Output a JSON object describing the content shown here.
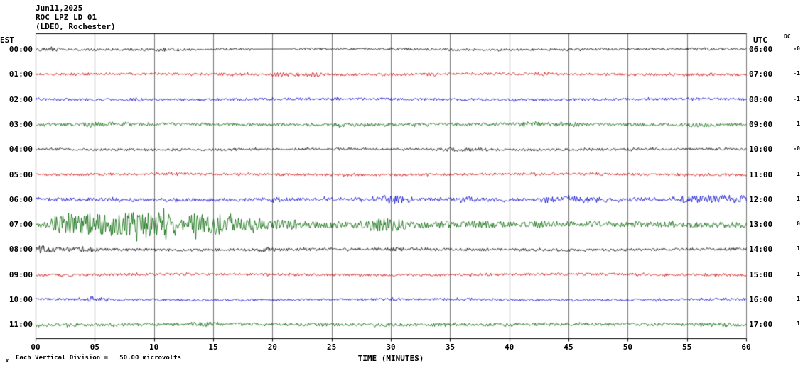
{
  "header": {
    "date": "Jun11,2025",
    "station": "ROC LPZ LD 01",
    "location": "(LDEO, Rochester)"
  },
  "axis": {
    "left_label": "EST",
    "right_label": "UTC",
    "dc_label": "DC",
    "x_title": "TIME (MINUTES)",
    "x_tick_labels": [
      "00",
      "05",
      "10",
      "15",
      "20",
      "25",
      "30",
      "35",
      "40",
      "45",
      "50",
      "55",
      "60"
    ],
    "footnote_marker": "x",
    "footnote": "Each Vertical Division =   50.00 microvolts"
  },
  "chart_data": {
    "type": "line",
    "title": "ROC LPZ LD 01 helicorder record, Jun11,2025 (LDEO, Rochester)",
    "xlabel": "TIME (MINUTES)",
    "x_range_minutes": [
      0,
      60
    ],
    "x_tick_interval": 5,
    "vertical_division_units": "50.00 microvolts",
    "grid": true,
    "colors": {
      "black": "#000000",
      "red": "#cc0000",
      "blue": "#0000cc",
      "green": "#006600"
    },
    "rows": [
      {
        "est": "00:00",
        "utc": "06:00",
        "dc": "-0",
        "color": "black",
        "base_amp": 1.6,
        "bursts": [
          {
            "t0": 0,
            "t1": 2,
            "amp": 2.6
          },
          {
            "t0": 9,
            "t1": 12,
            "amp": 2.2
          }
        ],
        "gaps": [
          [
            18.4,
            21.6
          ]
        ]
      },
      {
        "est": "01:00",
        "utc": "07:00",
        "dc": "-1",
        "color": "red",
        "base_amp": 1.8,
        "bursts": [
          {
            "t0": 20,
            "t1": 24,
            "amp": 3
          },
          {
            "t0": 33,
            "t1": 34,
            "amp": 2.6
          },
          {
            "t0": 42,
            "t1": 43,
            "amp": 2.6
          }
        ]
      },
      {
        "est": "02:00",
        "utc": "08:00",
        "dc": "-1",
        "color": "blue",
        "base_amp": 1.8,
        "bursts": [
          {
            "t0": 8,
            "t1": 9,
            "amp": 2.6
          },
          {
            "t0": 25,
            "t1": 26,
            "amp": 2.4
          },
          {
            "t0": 40,
            "t1": 41,
            "amp": 2.4
          }
        ]
      },
      {
        "est": "03:00",
        "utc": "09:00",
        "dc": "1",
        "color": "green",
        "base_amp": 2.2,
        "bursts": [
          {
            "t0": 4,
            "t1": 8,
            "amp": 3.2
          },
          {
            "t0": 25,
            "t1": 27,
            "amp": 2.8
          },
          {
            "t0": 41,
            "t1": 46,
            "amp": 3.2
          },
          {
            "t0": 55,
            "t1": 57,
            "amp": 2.8
          }
        ]
      },
      {
        "est": "04:00",
        "utc": "10:00",
        "dc": "-0",
        "color": "black",
        "base_amp": 1.7,
        "bursts": [
          {
            "t0": 34,
            "t1": 38,
            "amp": 2.8
          },
          {
            "t0": 50,
            "t1": 51,
            "amp": 2.4
          }
        ]
      },
      {
        "est": "05:00",
        "utc": "11:00",
        "dc": "1",
        "color": "red",
        "base_amp": 1.8,
        "bursts": [
          {
            "t0": 11,
            "t1": 12,
            "amp": 2.4
          },
          {
            "t0": 47,
            "t1": 48,
            "amp": 2.4
          }
        ]
      },
      {
        "est": "06:00",
        "utc": "12:00",
        "dc": "1",
        "color": "blue",
        "base_amp": 2.6,
        "bursts": [
          {
            "t0": 19.5,
            "t1": 20.5,
            "amp": 4.5
          },
          {
            "t0": 29.5,
            "t1": 31.5,
            "amp": 5.5
          },
          {
            "t0": 36,
            "t1": 37,
            "amp": 4
          },
          {
            "t0": 43,
            "t1": 48,
            "amp": 4.5
          },
          {
            "t0": 54,
            "t1": 60,
            "amp": 5.5
          }
        ]
      },
      {
        "est": "07:00",
        "utc": "13:00",
        "dc": "0",
        "color": "green",
        "base_amp": 3,
        "bursts": [
          {
            "t0": 0.5,
            "t1": 1.5,
            "amp": 5
          },
          {
            "t0": 1.5,
            "t1": 4.5,
            "amp": 13
          },
          {
            "t0": 4.5,
            "t1": 12,
            "amp": 17
          },
          {
            "t0": 12,
            "t1": 13,
            "amp": 9
          },
          {
            "t0": 13,
            "t1": 16.5,
            "amp": 15
          },
          {
            "t0": 16.5,
            "t1": 19,
            "amp": 9
          },
          {
            "t0": 19,
            "t1": 22,
            "amp": 7
          },
          {
            "t0": 22,
            "t1": 28,
            "amp": 5
          },
          {
            "t0": 28,
            "t1": 31,
            "amp": 9
          },
          {
            "t0": 31,
            "t1": 40,
            "amp": 5
          },
          {
            "t0": 40,
            "t1": 60,
            "amp": 4
          }
        ],
        "note": "large seismic event beginning near minute 1"
      },
      {
        "est": "08:00",
        "utc": "14:00",
        "dc": "1",
        "color": "black",
        "base_amp": 2,
        "bursts": [
          {
            "t0": 0,
            "t1": 1.5,
            "amp": 5
          },
          {
            "t0": 1.5,
            "t1": 5,
            "amp": 3.5
          },
          {
            "t0": 19,
            "t1": 20,
            "amp": 3.5
          },
          {
            "t0": 30,
            "t1": 31,
            "amp": 3
          }
        ]
      },
      {
        "est": "09:00",
        "utc": "15:00",
        "dc": "1",
        "color": "red",
        "base_amp": 1.8,
        "bursts": [
          {
            "t0": 2,
            "t1": 3,
            "amp": 2.4
          },
          {
            "t0": 21,
            "t1": 22,
            "amp": 2.4
          },
          {
            "t0": 57,
            "t1": 58,
            "amp": 2.4
          }
        ]
      },
      {
        "est": "10:00",
        "utc": "16:00",
        "dc": "1",
        "color": "blue",
        "base_amp": 1.7,
        "bursts": [
          {
            "t0": 4,
            "t1": 6,
            "amp": 2.8
          },
          {
            "t0": 30,
            "t1": 31,
            "amp": 2.4
          }
        ]
      },
      {
        "est": "11:00",
        "utc": "17:00",
        "dc": "1",
        "color": "green",
        "base_amp": 2.2,
        "bursts": [
          {
            "t0": 13,
            "t1": 15,
            "amp": 3.4
          },
          {
            "t0": 34,
            "t1": 35,
            "amp": 2.8
          },
          {
            "t0": 56,
            "t1": 58,
            "amp": 3.4
          }
        ]
      }
    ]
  }
}
